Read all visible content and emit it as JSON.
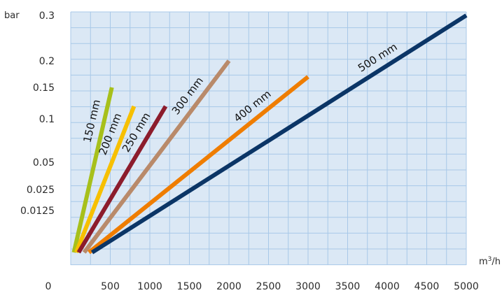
{
  "chart_data": {
    "type": "line",
    "ylabel": "bar",
    "xlabel_base": "m",
    "xlabel_sup": "3",
    "xlabel_tail": "/h",
    "grid": true,
    "xlim": [
      0,
      5000
    ],
    "x_ticks": [
      "0",
      "500",
      "1000",
      "1500",
      "2000",
      "2500",
      "3000",
      "3500",
      "4000",
      "4500",
      "5000"
    ],
    "y_ticks": [
      "0.3",
      "0.2",
      "0.15",
      "0.1",
      "0.05",
      "0.025",
      "0.0125"
    ],
    "series": [
      {
        "name": "150 mm",
        "color": "#a7c01b",
        "x": [
          40,
          520
        ],
        "y": [
          0.0,
          0.15
        ]
      },
      {
        "name": "200 mm",
        "color": "#f7c000",
        "x": [
          70,
          800
        ],
        "y": [
          0.0,
          0.12
        ]
      },
      {
        "name": "250 mm",
        "color": "#8c1c2c",
        "x": [
          100,
          1200
        ],
        "y": [
          0.0,
          0.12
        ]
      },
      {
        "name": "300 mm",
        "color": "#b98a6a",
        "x": [
          170,
          2000
        ],
        "y": [
          0.0,
          0.2
        ]
      },
      {
        "name": "400 mm",
        "color": "#ef7d00",
        "x": [
          230,
          3000
        ],
        "y": [
          0.0,
          0.17
        ]
      },
      {
        "name": "500 mm",
        "color": "#0b3566",
        "x": [
          270,
          5000
        ],
        "y": [
          0.0,
          0.3
        ]
      }
    ]
  }
}
